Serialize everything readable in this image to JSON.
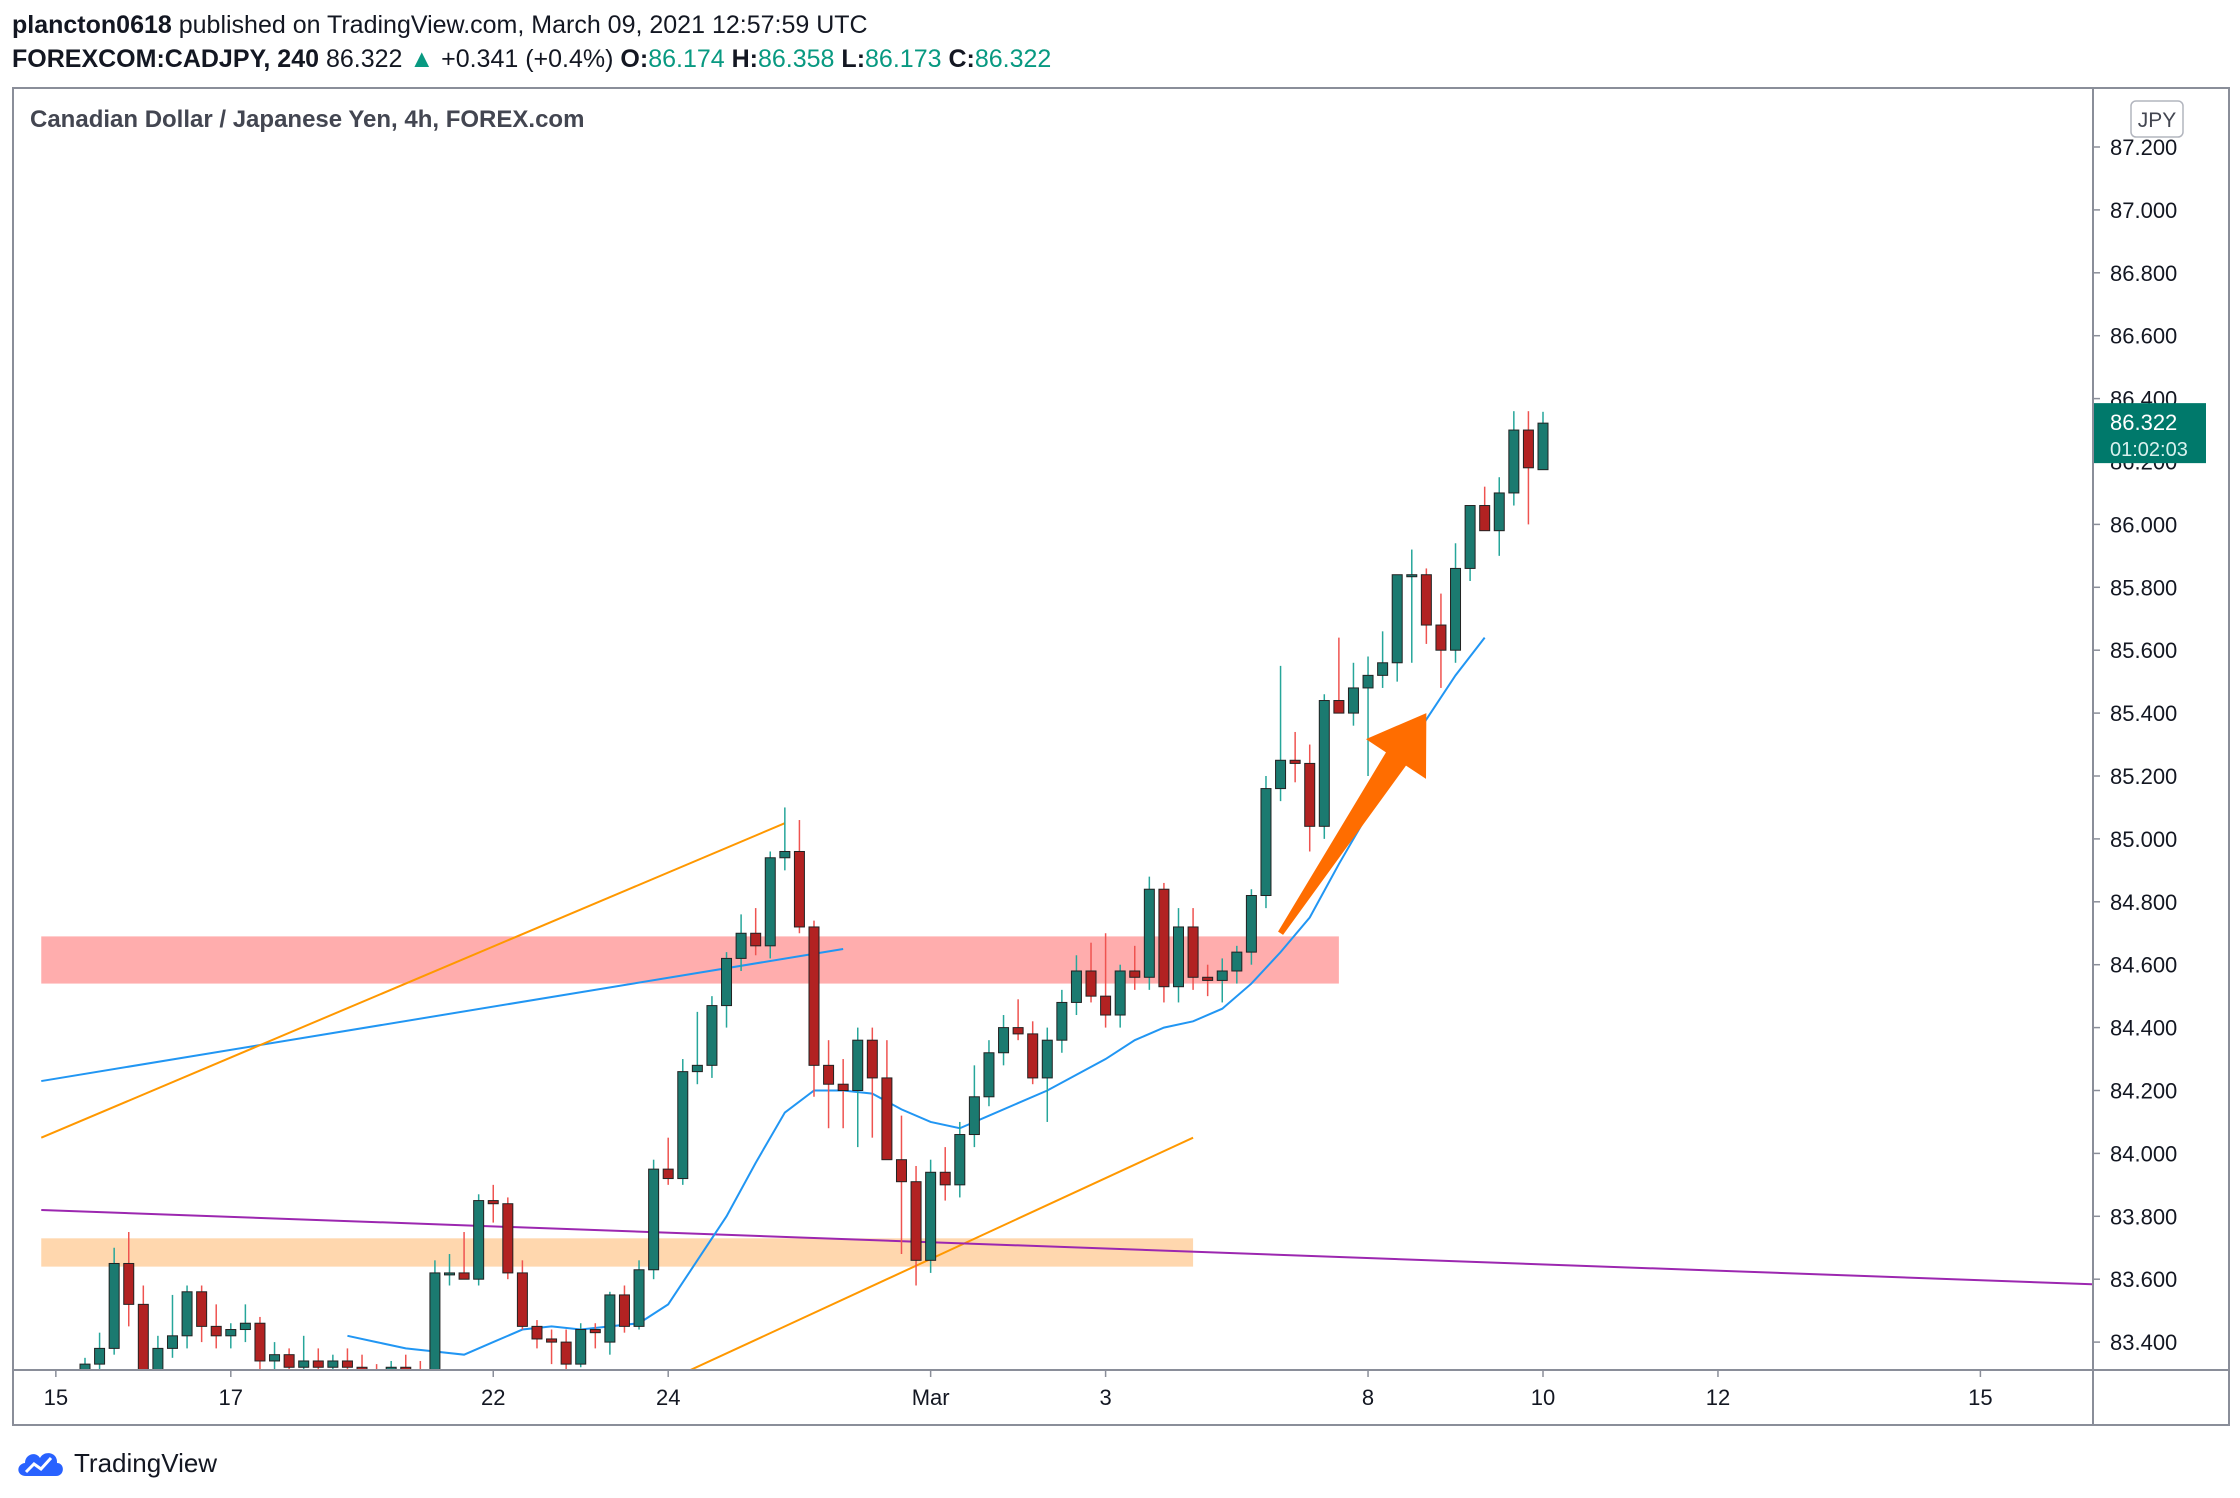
{
  "header": {
    "author": "plancton0618",
    "published": "published on TradingView.com, March 09, 2021 12:57:59 UTC",
    "symbol": "FOREXCOM:CADJPY, 240",
    "last": "86.322",
    "change": "+0.341 (+0.4%)",
    "o_label": "O:",
    "o": "86.174",
    "h_label": "H:",
    "h": "86.358",
    "l_label": "L:",
    "l": "86.173",
    "c_label": "C:",
    "c": "86.322"
  },
  "brand": {
    "name": "TradingView",
    "icon": "tradingview-cloud-icon"
  },
  "colors": {
    "up": "#26a69a",
    "down": "#ef5350",
    "up_fill": "#1b7a70",
    "down_fill": "#b22222",
    "ma": "#2196f3",
    "trend_orange": "#ff9800",
    "trend_purple": "#9c27b0",
    "zone_red": "#ff9f9f",
    "zone_orange": "#ffd0a0",
    "arrow": "#ff6d00",
    "price_tag": "#00796b"
  },
  "chart_data": {
    "type": "candlestick",
    "title": "Canadian Dollar / Japanese Yen, 4h, FOREX.com",
    "currency": "JPY",
    "ylim": [
      83.3,
      87.3
    ],
    "y_ticks": [
      "87.200",
      "87.000",
      "86.800",
      "86.600",
      "86.400",
      "86.200",
      "86.000",
      "85.800",
      "85.600",
      "85.400",
      "85.200",
      "85.000",
      "84.800",
      "84.600",
      "84.400",
      "84.200",
      "84.000",
      "83.800",
      "83.600",
      "83.400"
    ],
    "x_ticks": [
      {
        "label": "15",
        "bar": -2
      },
      {
        "label": "17",
        "bar": 10
      },
      {
        "label": "22",
        "bar": 28
      },
      {
        "label": "24",
        "bar": 40
      },
      {
        "label": "Mar",
        "bar": 58
      },
      {
        "label": "3",
        "bar": 70
      },
      {
        "label": "8",
        "bar": 88
      },
      {
        "label": "10",
        "bar": 100
      },
      {
        "label": "12",
        "bar": 112
      },
      {
        "label": "15",
        "bar": 130
      }
    ],
    "last_price": "86.322",
    "countdown": "01:02:03",
    "candles": [
      [
        83.3,
        83.35,
        83.28,
        83.33
      ],
      [
        83.33,
        83.43,
        83.3,
        83.38
      ],
      [
        83.38,
        83.7,
        83.36,
        83.65
      ],
      [
        83.65,
        83.75,
        83.45,
        83.52
      ],
      [
        83.52,
        83.58,
        83.2,
        83.3
      ],
      [
        83.3,
        83.42,
        83.25,
        83.38
      ],
      [
        83.38,
        83.55,
        83.35,
        83.42
      ],
      [
        83.42,
        83.58,
        83.38,
        83.56
      ],
      [
        83.56,
        83.58,
        83.4,
        83.45
      ],
      [
        83.45,
        83.52,
        83.38,
        83.42
      ],
      [
        83.42,
        83.46,
        83.38,
        83.44
      ],
      [
        83.44,
        83.52,
        83.4,
        83.46
      ],
      [
        83.46,
        83.48,
        83.28,
        83.34
      ],
      [
        83.34,
        83.4,
        83.28,
        83.36
      ],
      [
        83.36,
        83.38,
        83.3,
        83.32
      ],
      [
        83.32,
        83.42,
        83.3,
        83.34
      ],
      [
        83.34,
        83.38,
        83.28,
        83.32
      ],
      [
        83.32,
        83.36,
        83.28,
        83.34
      ],
      [
        83.34,
        83.38,
        83.28,
        83.32
      ],
      [
        83.32,
        83.36,
        83.28,
        83.31
      ],
      [
        83.31,
        83.33,
        83.26,
        83.3
      ],
      [
        83.3,
        83.34,
        83.26,
        83.32
      ],
      [
        83.32,
        83.36,
        83.28,
        83.3
      ],
      [
        83.3,
        83.34,
        83.26,
        83.28
      ],
      [
        83.28,
        83.66,
        83.26,
        83.62
      ],
      [
        83.62,
        83.68,
        83.58,
        83.62
      ],
      [
        83.62,
        83.75,
        83.6,
        83.6
      ],
      [
        83.6,
        83.87,
        83.58,
        83.85
      ],
      [
        83.85,
        83.9,
        83.78,
        83.84
      ],
      [
        83.84,
        83.86,
        83.6,
        83.62
      ],
      [
        83.62,
        83.66,
        83.44,
        83.45
      ],
      [
        83.45,
        83.47,
        83.38,
        83.41
      ],
      [
        83.41,
        83.44,
        83.33,
        83.4
      ],
      [
        83.4,
        83.44,
        83.3,
        83.33
      ],
      [
        83.33,
        83.46,
        83.32,
        83.44
      ],
      [
        83.44,
        83.46,
        83.38,
        83.43
      ],
      [
        83.4,
        83.56,
        83.36,
        83.55
      ],
      [
        83.55,
        83.58,
        83.43,
        83.45
      ],
      [
        83.45,
        83.66,
        83.44,
        83.63
      ],
      [
        83.63,
        83.98,
        83.6,
        83.95
      ],
      [
        83.95,
        84.05,
        83.9,
        83.92
      ],
      [
        83.92,
        84.3,
        83.9,
        84.26
      ],
      [
        84.26,
        84.45,
        84.22,
        84.28
      ],
      [
        84.28,
        84.5,
        84.24,
        84.47
      ],
      [
        84.47,
        84.64,
        84.4,
        84.62
      ],
      [
        84.62,
        84.76,
        84.58,
        84.7
      ],
      [
        84.7,
        84.78,
        84.63,
        84.66
      ],
      [
        84.66,
        84.96,
        84.62,
        84.94
      ],
      [
        84.94,
        85.1,
        84.9,
        84.96
      ],
      [
        84.96,
        85.06,
        84.7,
        84.72
      ],
      [
        84.72,
        84.74,
        84.18,
        84.28
      ],
      [
        84.28,
        84.36,
        84.08,
        84.22
      ],
      [
        84.22,
        84.3,
        84.08,
        84.2
      ],
      [
        84.2,
        84.4,
        84.02,
        84.36
      ],
      [
        84.36,
        84.4,
        84.05,
        84.24
      ],
      [
        84.24,
        84.36,
        84.0,
        83.98
      ],
      [
        83.98,
        84.12,
        83.68,
        83.91
      ],
      [
        83.91,
        83.96,
        83.58,
        83.66
      ],
      [
        83.66,
        83.98,
        83.62,
        83.94
      ],
      [
        83.94,
        84.02,
        83.85,
        83.9
      ],
      [
        83.9,
        84.1,
        83.86,
        84.06
      ],
      [
        84.06,
        84.28,
        84.02,
        84.18
      ],
      [
        84.18,
        84.36,
        84.15,
        84.32
      ],
      [
        84.32,
        84.44,
        84.28,
        84.4
      ],
      [
        84.4,
        84.49,
        84.36,
        84.38
      ],
      [
        84.38,
        84.42,
        84.22,
        84.24
      ],
      [
        84.24,
        84.4,
        84.1,
        84.36
      ],
      [
        84.36,
        84.52,
        84.32,
        84.48
      ],
      [
        84.48,
        84.63,
        84.44,
        84.58
      ],
      [
        84.58,
        84.67,
        84.48,
        84.5
      ],
      [
        84.5,
        84.7,
        84.4,
        84.44
      ],
      [
        84.44,
        84.6,
        84.4,
        84.58
      ],
      [
        84.58,
        84.66,
        84.52,
        84.56
      ],
      [
        84.56,
        84.88,
        84.52,
        84.84
      ],
      [
        84.84,
        84.86,
        84.48,
        84.53
      ],
      [
        84.53,
        84.78,
        84.48,
        84.72
      ],
      [
        84.72,
        84.78,
        84.52,
        84.56
      ],
      [
        84.56,
        84.6,
        84.5,
        84.55
      ],
      [
        84.55,
        84.62,
        84.48,
        84.58
      ],
      [
        84.58,
        84.66,
        84.54,
        84.64
      ],
      [
        84.64,
        84.84,
        84.6,
        84.82
      ],
      [
        84.82,
        85.2,
        84.78,
        85.16
      ],
      [
        85.16,
        85.55,
        85.12,
        85.25
      ],
      [
        85.25,
        85.34,
        85.18,
        85.24
      ],
      [
        85.24,
        85.3,
        84.96,
        85.04
      ],
      [
        85.04,
        85.46,
        85.0,
        85.44
      ],
      [
        85.44,
        85.64,
        85.4,
        85.4
      ],
      [
        85.4,
        85.56,
        85.36,
        85.48
      ],
      [
        85.48,
        85.58,
        85.2,
        85.52
      ],
      [
        85.52,
        85.66,
        85.48,
        85.56
      ],
      [
        85.56,
        85.82,
        85.5,
        85.84
      ],
      [
        85.84,
        85.92,
        85.56,
        85.84
      ],
      [
        85.84,
        85.86,
        85.62,
        85.68
      ],
      [
        85.68,
        85.78,
        85.48,
        85.6
      ],
      [
        85.6,
        85.94,
        85.56,
        85.86
      ],
      [
        85.86,
        86.06,
        85.82,
        86.06
      ],
      [
        86.06,
        86.12,
        85.98,
        85.98
      ],
      [
        85.98,
        86.15,
        85.9,
        86.1
      ],
      [
        86.1,
        86.36,
        86.06,
        86.3
      ],
      [
        86.3,
        86.36,
        86.0,
        86.18
      ],
      [
        86.174,
        86.358,
        86.173,
        86.322
      ]
    ],
    "ma": [
      [
        18,
        83.42
      ],
      [
        20,
        83.4
      ],
      [
        22,
        83.38
      ],
      [
        24,
        83.37
      ],
      [
        26,
        83.36
      ],
      [
        28,
        83.4
      ],
      [
        30,
        83.44
      ],
      [
        32,
        83.45
      ],
      [
        34,
        83.44
      ],
      [
        36,
        83.45
      ],
      [
        38,
        83.46
      ],
      [
        40,
        83.52
      ],
      [
        42,
        83.66
      ],
      [
        44,
        83.8
      ],
      [
        46,
        83.97
      ],
      [
        48,
        84.13
      ],
      [
        50,
        84.2
      ],
      [
        52,
        84.2
      ],
      [
        54,
        84.19
      ],
      [
        56,
        84.14
      ],
      [
        58,
        84.1
      ],
      [
        60,
        84.08
      ],
      [
        62,
        84.12
      ],
      [
        64,
        84.16
      ],
      [
        66,
        84.2
      ],
      [
        68,
        84.25
      ],
      [
        70,
        84.3
      ],
      [
        72,
        84.36
      ],
      [
        74,
        84.4
      ],
      [
        76,
        84.42
      ],
      [
        78,
        84.46
      ],
      [
        80,
        84.54
      ],
      [
        82,
        84.64
      ],
      [
        84,
        84.75
      ],
      [
        86,
        84.92
      ],
      [
        88,
        85.08
      ],
      [
        90,
        85.22
      ],
      [
        92,
        85.38
      ],
      [
        94,
        85.52
      ],
      [
        96,
        85.64
      ]
    ],
    "zones": [
      {
        "from_bar": -3,
        "to_bar": 86,
        "y1": 84.54,
        "y2": 84.69,
        "color": "#ff9f9f"
      },
      {
        "from_bar": -3,
        "to_bar": 76,
        "y1": 83.64,
        "y2": 83.73,
        "color": "#ffd0a0"
      }
    ],
    "lines": [
      {
        "x1": -3,
        "y1": 84.23,
        "x2": 52,
        "y2": 84.65,
        "color": "#2196f3"
      },
      {
        "x1": -3,
        "y1": 84.05,
        "x2": 48,
        "y2": 85.05,
        "color": "#ff9800"
      },
      {
        "x1": 41,
        "y1": 83.3,
        "x2": 76,
        "y2": 84.05,
        "color": "#ff9800"
      },
      {
        "x1": -3,
        "y1": 83.82,
        "x2": 140,
        "y2": 83.58,
        "color": "#9c27b0"
      }
    ],
    "arrow": {
      "x1": 82,
      "y1": 84.7,
      "x2": 92,
      "y2": 85.4,
      "color": "#ff6d00"
    }
  }
}
